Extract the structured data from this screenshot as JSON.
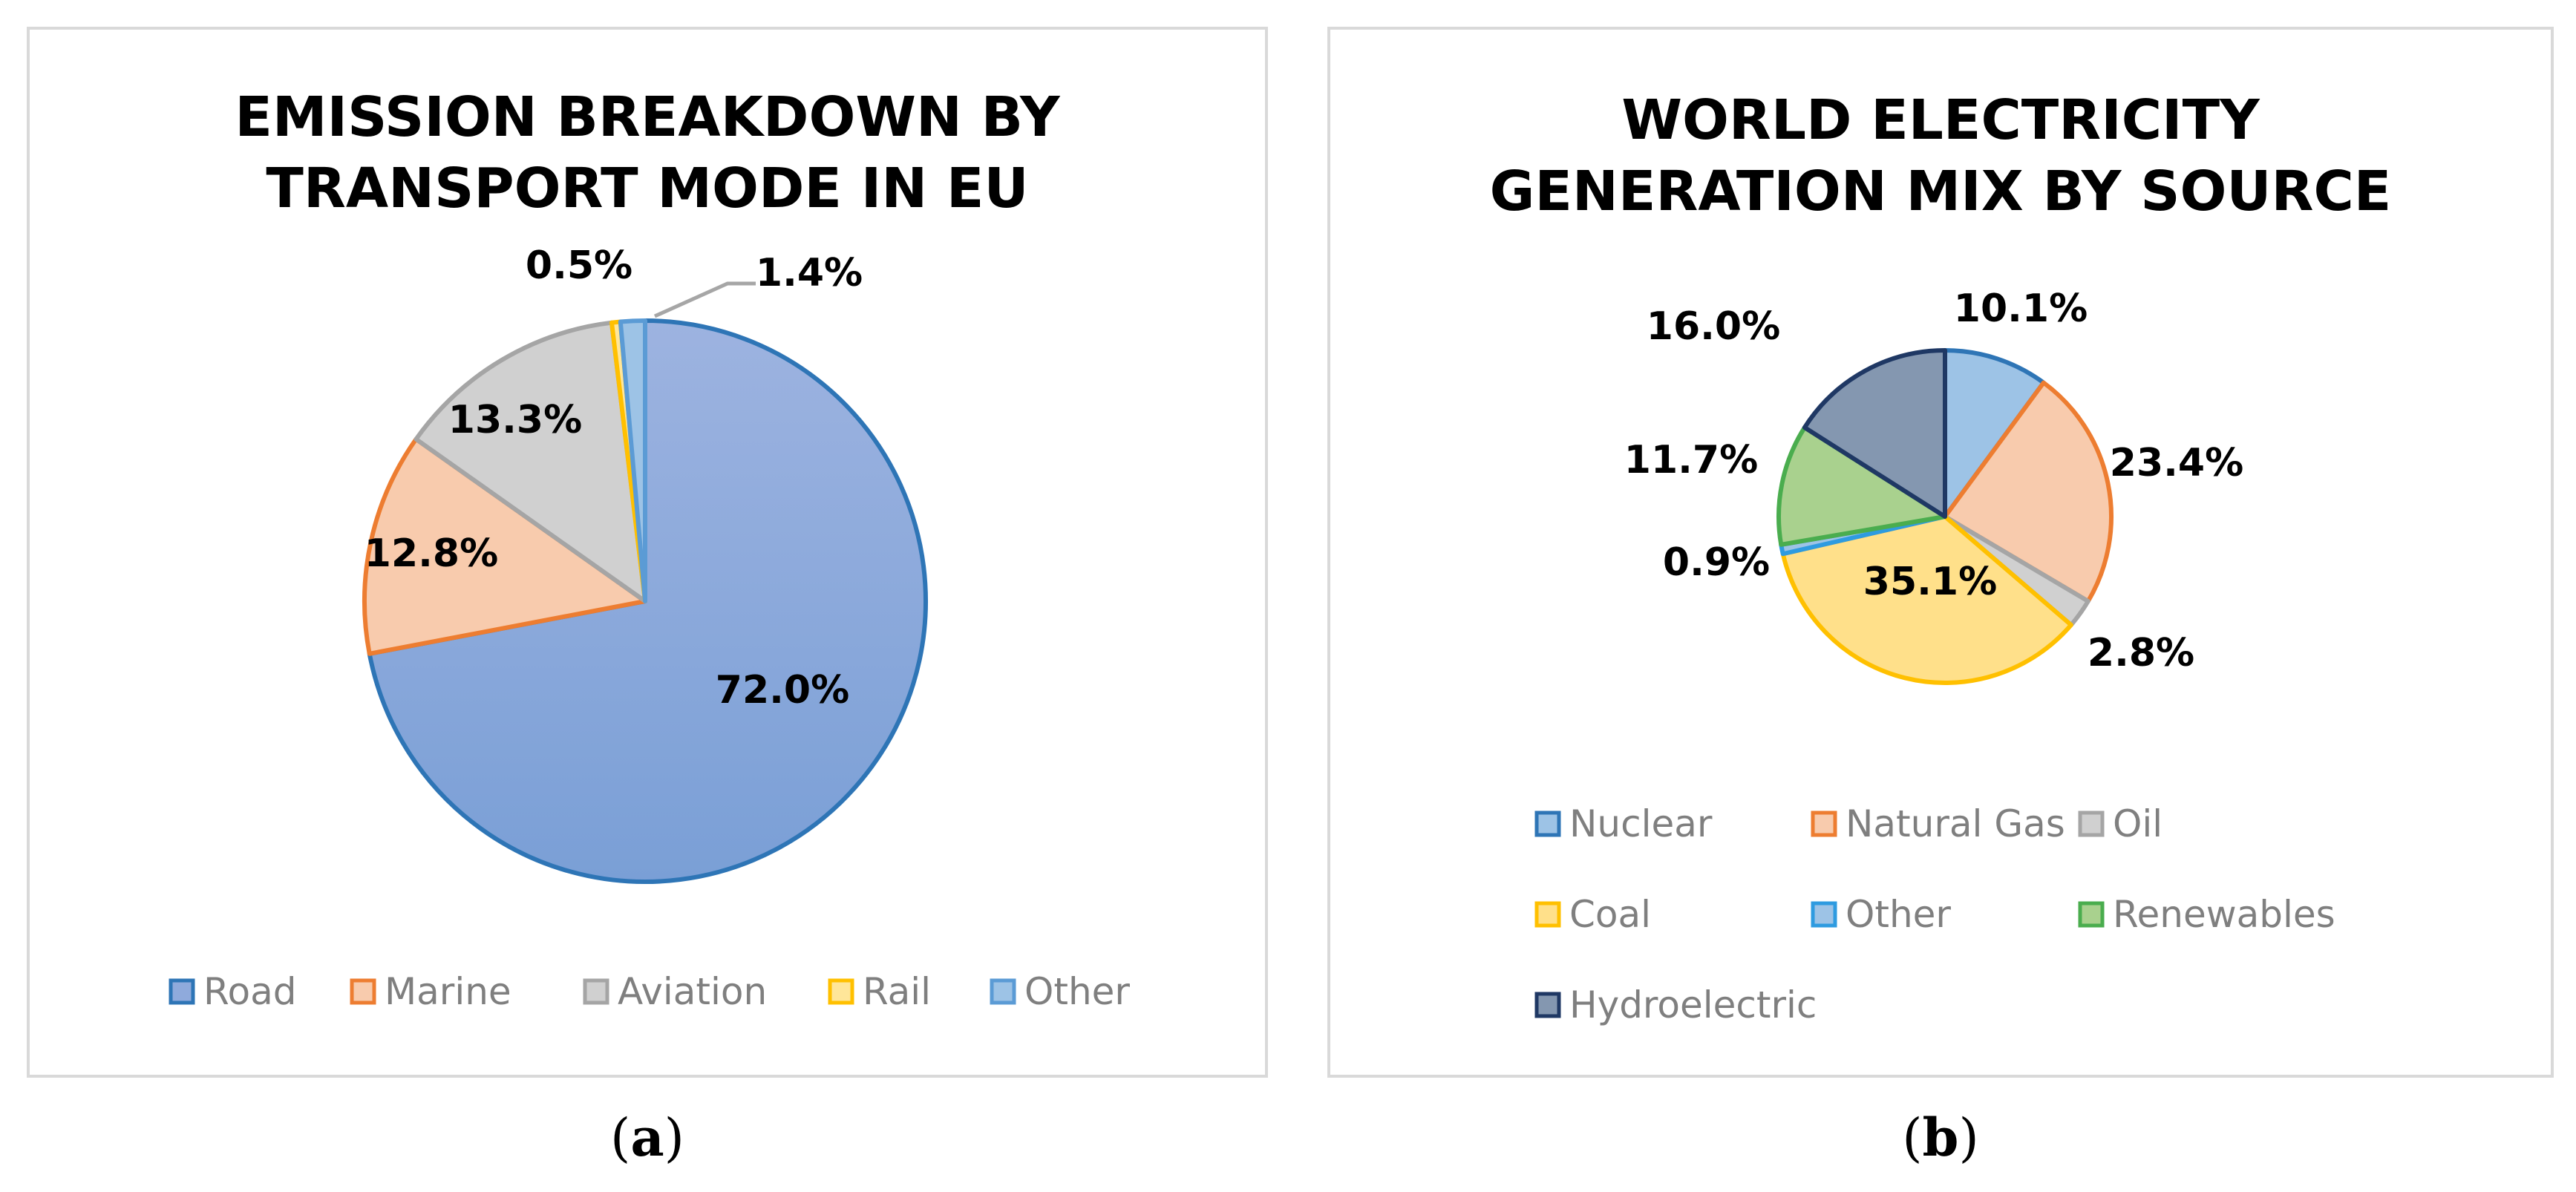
{
  "chart_data": [
    {
      "type": "pie",
      "title": "EMISSION BREAKDOWN BY\nTRANSPORT MODE IN EU",
      "caption": {
        "open": "(",
        "letter": "a",
        "close": ")"
      },
      "legend_position": "bottom",
      "slices": [
        {
          "name": "Road",
          "value": 72.0,
          "label": "72.0%",
          "fill": "#8faadc",
          "stroke": "#2e75b6"
        },
        {
          "name": "Marine",
          "value": 12.8,
          "label": "12.8%",
          "fill": "#f8cbad",
          "stroke": "#ed7d31"
        },
        {
          "name": "Aviation",
          "value": 13.3,
          "label": "13.3%",
          "fill": "#d0d0d0",
          "stroke": "#a5a5a5"
        },
        {
          "name": "Rail",
          "value": 0.5,
          "label": "0.5%",
          "fill": "#ffe699",
          "stroke": "#ffc000"
        },
        {
          "name": "Other",
          "value": 1.4,
          "label": "1.4%",
          "fill": "#9dc3e6",
          "stroke": "#5b9bd5"
        }
      ]
    },
    {
      "type": "pie",
      "title": "WORLD ELECTRICITY\nGENERATION MIX BY SOURCE",
      "caption": {
        "open": "(",
        "letter": "b",
        "close": ")"
      },
      "legend_position": "bottom",
      "slices": [
        {
          "name": "Nuclear",
          "value": 10.1,
          "label": "10.1%",
          "fill": "#9dc3e6",
          "stroke": "#2e75b6"
        },
        {
          "name": "Natural Gas",
          "value": 23.4,
          "label": "23.4%",
          "fill": "#f8cbad",
          "stroke": "#ed7d31"
        },
        {
          "name": "Oil",
          "value": 2.8,
          "label": "2.8%",
          "fill": "#d0d0d0",
          "stroke": "#a5a5a5"
        },
        {
          "name": "Coal",
          "value": 35.1,
          "label": "35.1%",
          "fill": "#ffe08a",
          "stroke": "#ffc000"
        },
        {
          "name": "Other",
          "value": 0.9,
          "label": "0.9%",
          "fill": "#9dc3e6",
          "stroke": "#2e9be0"
        },
        {
          "name": "Renewables",
          "value": 11.7,
          "label": "11.7%",
          "fill": "#a9d18e",
          "stroke": "#4aad4e"
        },
        {
          "name": "Hydroelectric",
          "value": 16.0,
          "label": "16.0%",
          "fill": "#8497b0",
          "stroke": "#1f3864"
        }
      ]
    }
  ]
}
